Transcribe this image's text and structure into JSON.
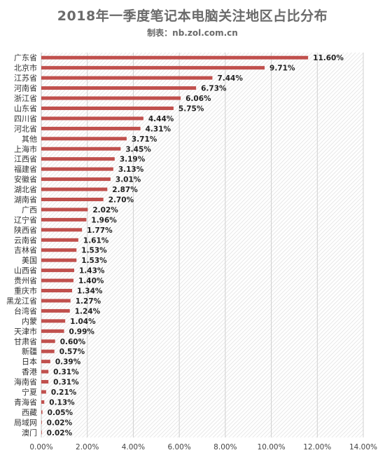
{
  "header": {
    "title": "2018年一季度笔记本电脑关注地区占比分布",
    "subtitle": "制表：nb.zol.com.cn"
  },
  "chart_data": {
    "type": "bar",
    "orientation": "horizontal",
    "title": "2018年一季度笔记本电脑关注地区占比分布",
    "subtitle": "制表：nb.zol.com.cn",
    "xlabel": "",
    "ylabel": "",
    "xlim": [
      0,
      14
    ],
    "xticks": [
      "0.00%",
      "2.00%",
      "4.00%",
      "6.00%",
      "8.00%",
      "10.00%",
      "12.00%",
      "14.00%"
    ],
    "grid": true,
    "bar_color": "#c0504d",
    "categories": [
      "广东省",
      "北京市",
      "江苏省",
      "河南省",
      "浙江省",
      "山东省",
      "四川省",
      "河北省",
      "其他",
      "上海市",
      "江西省",
      "福建省",
      "安徽省",
      "湖北省",
      "湖南省",
      "广西",
      "辽宁省",
      "陕西省",
      "云南省",
      "吉林省",
      "美国",
      "山西省",
      "贵州省",
      "重庆市",
      "黑龙江省",
      "台湾省",
      "内蒙",
      "天津市",
      "甘肃省",
      "新疆",
      "日本",
      "香港",
      "海南省",
      "宁夏",
      "青海省",
      "西藏",
      "局域网",
      "澳门"
    ],
    "values": [
      11.6,
      9.71,
      7.44,
      6.73,
      6.06,
      5.75,
      4.44,
      4.31,
      3.71,
      3.45,
      3.19,
      3.13,
      3.01,
      2.87,
      2.7,
      2.02,
      1.96,
      1.77,
      1.61,
      1.53,
      1.53,
      1.43,
      1.4,
      1.34,
      1.27,
      1.24,
      1.04,
      0.99,
      0.6,
      0.57,
      0.39,
      0.31,
      0.31,
      0.21,
      0.13,
      0.05,
      0.02,
      0.02
    ],
    "value_labels": [
      "11.60%",
      "9.71%",
      "7.44%",
      "6.73%",
      "6.06%",
      "5.75%",
      "4.44%",
      "4.31%",
      "3.71%",
      "3.45%",
      "3.19%",
      "3.13%",
      "3.01%",
      "2.87%",
      "2.70%",
      "2.02%",
      "1.96%",
      "1.77%",
      "1.61%",
      "1.53%",
      "1.53%",
      "1.43%",
      "1.40%",
      "1.34%",
      "1.27%",
      "1.24%",
      "1.04%",
      "0.99%",
      "0.60%",
      "0.57%",
      "0.39%",
      "0.31%",
      "0.31%",
      "0.21%",
      "0.13%",
      "0.05%",
      "0.02%",
      "0.02%"
    ]
  }
}
